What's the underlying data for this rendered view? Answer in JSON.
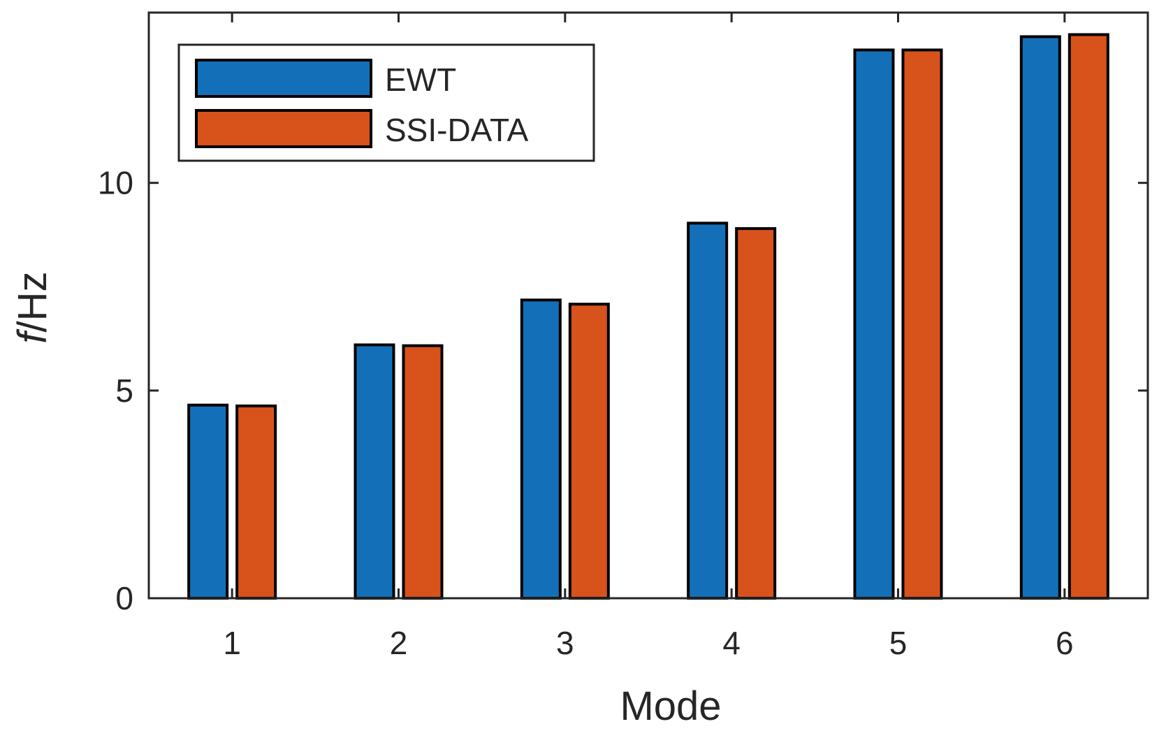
{
  "chart_data": {
    "type": "bar",
    "title": "",
    "xlabel": "Mode",
    "ylabel_italic": "f",
    "ylabel_rest": "/Hz",
    "categories": [
      "1",
      "2",
      "3",
      "4",
      "5",
      "6"
    ],
    "series": [
      {
        "name": "EWT",
        "color": "#1370b8",
        "values": [
          4.65,
          6.1,
          7.18,
          9.03,
          13.2,
          13.52
        ]
      },
      {
        "name": "SSI-DATA",
        "color": "#d8521c",
        "values": [
          4.63,
          6.08,
          7.08,
          8.9,
          13.2,
          13.57
        ]
      }
    ],
    "ylim": [
      0,
      14.1
    ],
    "yticks": [
      {
        "value": 0,
        "label": "0"
      },
      {
        "value": 5,
        "label": "5"
      },
      {
        "value": 10,
        "label": "10"
      }
    ],
    "grid": false,
    "legend_position": "top-left"
  }
}
